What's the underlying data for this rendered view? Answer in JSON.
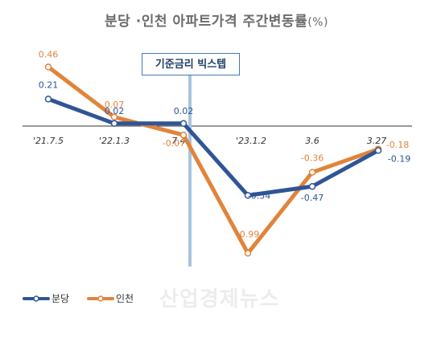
{
  "header": {
    "title_main": "분당 ·인천 아파트가격 주간변동률",
    "title_unit": "(%)"
  },
  "callout": {
    "label": "기준금리 빅스텝"
  },
  "watermark": {
    "text": "산업경제뉴스"
  },
  "colors": {
    "분당": "#2f5597",
    "인천": "#e1843a",
    "axis": "#333333",
    "refline": "#a9c4de"
  },
  "chart_data": {
    "type": "line",
    "categories": [
      "'21.7.5",
      "'22.1.3",
      "7.4",
      "'23.1.2",
      "3.6",
      "3.27"
    ],
    "series": [
      {
        "name": "분당",
        "values": [
          0.21,
          0.02,
          0.02,
          -0.54,
          -0.47,
          -0.19
        ],
        "labels": [
          "0.21",
          "0.02",
          "0.02",
          "-0.54",
          "-0.47",
          "-0.19"
        ]
      },
      {
        "name": "인천",
        "values": [
          0.46,
          0.07,
          -0.07,
          -0.99,
          -0.36,
          -0.18
        ],
        "labels": [
          "0.46",
          "0.07",
          "-0.07",
          "-0.99",
          "-0.36",
          "-0.18"
        ]
      }
    ],
    "title": "분당 ·인천 아파트가격 주간변동률(%)",
    "ylim": [
      -1.2,
      0.6
    ],
    "legend": "bottom-left",
    "grid": false,
    "reference_line_after": "7.4"
  }
}
